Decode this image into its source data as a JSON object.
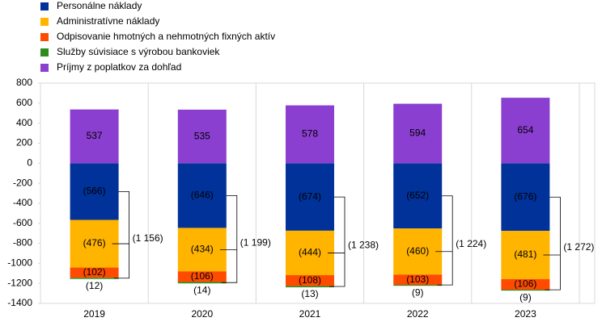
{
  "chart_data": {
    "type": "stacked_bar",
    "categories": [
      "2019",
      "2020",
      "2021",
      "2022",
      "2023"
    ],
    "series": [
      {
        "name": "Personálne náklady",
        "color": "#003299",
        "values": [
          -566,
          -646,
          -674,
          -652,
          -676
        ],
        "value_labels": [
          "(566)",
          "(646)",
          "(674)",
          "(652)",
          "(676)"
        ],
        "label_color": "#ffffff"
      },
      {
        "name": "Administratívne náklady",
        "color": "#ffb400",
        "values": [
          -476,
          -434,
          -444,
          -460,
          -481
        ],
        "value_labels": [
          "(476)",
          "(434)",
          "(444)",
          "(460)",
          "(481)"
        ],
        "label_color": "#000000"
      },
      {
        "name": "Odpisovanie hmotných a nehmotných fixných aktív",
        "color": "#ff4b00",
        "values": [
          -102,
          -106,
          -108,
          -103,
          -106
        ],
        "value_labels": [
          "(102)",
          "(106)",
          "(108)",
          "(103)",
          "(106)"
        ],
        "label_color": "#000000"
      },
      {
        "name": "Služby súvisiace s výrobou bankoviek",
        "color": "#2e8b1e",
        "values": [
          -12,
          -14,
          -13,
          -9,
          -9
        ],
        "value_labels": [
          "(12)",
          "(14)",
          "(13)",
          "(9)",
          "(9)"
        ],
        "label_color": "#000000"
      },
      {
        "name": "Príjmy z poplatkov za dohľad",
        "color": "#8a3fd0",
        "values": [
          537,
          535,
          578,
          594,
          654
        ],
        "label_color": "#ffffff"
      }
    ],
    "totals": {
      "values": [
        -1156,
        -1199,
        -1238,
        -1224,
        -1272
      ],
      "value_labels": [
        "(1 156)",
        "(1 199)",
        "(1 238)",
        "(1 224)",
        "(1 272)"
      ]
    },
    "ylim": [
      -1400,
      800
    ],
    "yticks": [
      -1400,
      -1200,
      -1000,
      -800,
      -600,
      -400,
      -200,
      0,
      200,
      400,
      600,
      800
    ],
    "grid": false
  }
}
